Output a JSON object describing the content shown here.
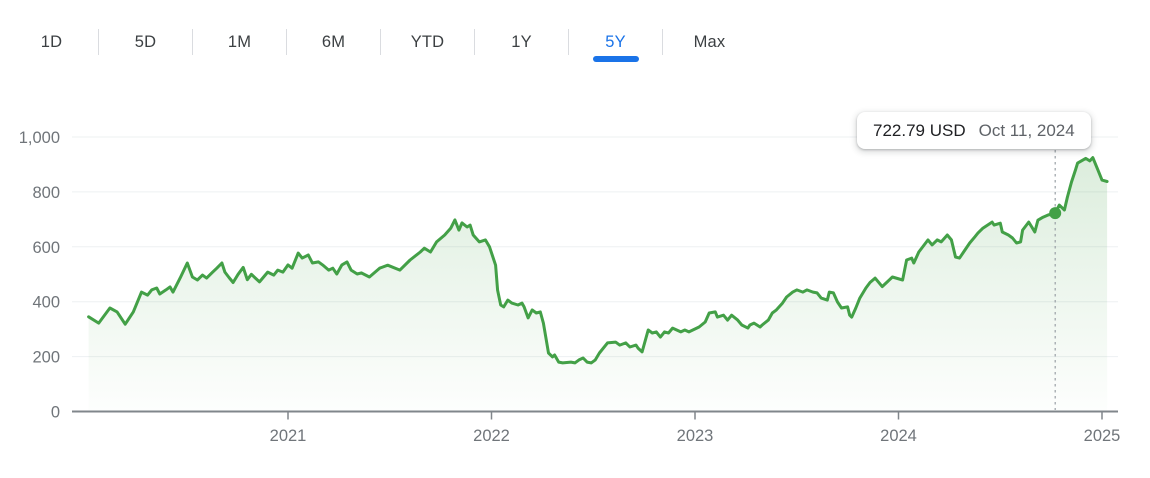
{
  "tabbar": {
    "tabs": [
      {
        "label": "1D",
        "selected": false
      },
      {
        "label": "5D",
        "selected": false
      },
      {
        "label": "1M",
        "selected": false
      },
      {
        "label": "6M",
        "selected": false
      },
      {
        "label": "YTD",
        "selected": false
      },
      {
        "label": "1Y",
        "selected": false
      },
      {
        "label": "5Y",
        "selected": true
      },
      {
        "label": "Max",
        "selected": false
      }
    ]
  },
  "tooltip": {
    "price": "722.79 USD",
    "date": "Oct 11, 2024"
  },
  "colors": {
    "accent_blue": "#1a73e8",
    "line_green": "#43a047",
    "axis_text": "#70757a",
    "tab_text": "#3c4043",
    "divider": "#dadce0",
    "gridline": "#edf0f2",
    "axis_line": "#80868b",
    "crosshair": "#9aa0a6",
    "tooltip_price_color": "#202124",
    "tooltip_date_color": "#5f6368"
  },
  "chart_data": {
    "type": "area",
    "title": "5-year stock price history (USD)",
    "xlabel": "",
    "ylabel": "",
    "ylim": [
      0,
      1000
    ],
    "xlim": [
      2020.02,
      2025.08
    ],
    "grid": true,
    "legend": false,
    "line_color": "#43a047",
    "y_ticks": [
      {
        "value": 0,
        "label": "0"
      },
      {
        "value": 200,
        "label": "200"
      },
      {
        "value": 400,
        "label": "400"
      },
      {
        "value": 600,
        "label": "600"
      },
      {
        "value": 800,
        "label": "800"
      },
      {
        "value": 1000,
        "label": "1,000"
      }
    ],
    "x_ticks": [
      {
        "value": 2021,
        "label": "2021"
      },
      {
        "value": 2022,
        "label": "2022"
      },
      {
        "value": 2023,
        "label": "2023"
      },
      {
        "value": 2024,
        "label": "2024"
      },
      {
        "value": 2025,
        "label": "2025"
      }
    ],
    "crosshair": {
      "t": 2024.77,
      "value": 722.79,
      "price": "722.79 USD",
      "date": "Oct 11, 2024"
    },
    "series": [
      {
        "name": "price",
        "points": [
          [
            2020.02,
            345
          ],
          [
            2020.07,
            322
          ],
          [
            2020.125,
            377
          ],
          [
            2020.16,
            363
          ],
          [
            2020.2,
            318
          ],
          [
            2020.24,
            363
          ],
          [
            2020.28,
            435
          ],
          [
            2020.31,
            424
          ],
          [
            2020.33,
            443
          ],
          [
            2020.355,
            450
          ],
          [
            2020.37,
            428
          ],
          [
            2020.4,
            443
          ],
          [
            2020.42,
            454
          ],
          [
            2020.435,
            435
          ],
          [
            2020.47,
            486
          ],
          [
            2020.505,
            541
          ],
          [
            2020.53,
            490
          ],
          [
            2020.555,
            479
          ],
          [
            2020.58,
            497
          ],
          [
            2020.6,
            486
          ],
          [
            2020.63,
            508
          ],
          [
            2020.65,
            522
          ],
          [
            2020.675,
            541
          ],
          [
            2020.69,
            508
          ],
          [
            2020.71,
            488
          ],
          [
            2020.73,
            470
          ],
          [
            2020.755,
            500
          ],
          [
            2020.78,
            525
          ],
          [
            2020.8,
            480
          ],
          [
            2020.82,
            500
          ],
          [
            2020.84,
            486
          ],
          [
            2020.86,
            472
          ],
          [
            2020.9,
            508
          ],
          [
            2020.93,
            497
          ],
          [
            2020.95,
            515
          ],
          [
            2020.975,
            508
          ],
          [
            2021.0,
            534
          ],
          [
            2021.02,
            522
          ],
          [
            2021.05,
            577
          ],
          [
            2021.07,
            559
          ],
          [
            2021.1,
            570
          ],
          [
            2021.12,
            541
          ],
          [
            2021.15,
            545
          ],
          [
            2021.17,
            534
          ],
          [
            2021.2,
            515
          ],
          [
            2021.22,
            522
          ],
          [
            2021.24,
            501
          ],
          [
            2021.265,
            534
          ],
          [
            2021.29,
            545
          ],
          [
            2021.31,
            515
          ],
          [
            2021.34,
            501
          ],
          [
            2021.36,
            505
          ],
          [
            2021.4,
            490
          ],
          [
            2021.45,
            522
          ],
          [
            2021.49,
            533
          ],
          [
            2021.55,
            515
          ],
          [
            2021.6,
            552
          ],
          [
            2021.65,
            581
          ],
          [
            2021.67,
            595
          ],
          [
            2021.7,
            581
          ],
          [
            2021.73,
            618
          ],
          [
            2021.77,
            643
          ],
          [
            2021.8,
            668
          ],
          [
            2021.82,
            698
          ],
          [
            2021.84,
            661
          ],
          [
            2021.855,
            687
          ],
          [
            2021.88,
            672
          ],
          [
            2021.895,
            679
          ],
          [
            2021.91,
            643
          ],
          [
            2021.94,
            618
          ],
          [
            2021.97,
            625
          ],
          [
            2021.99,
            600
          ],
          [
            2022.02,
            533
          ],
          [
            2022.03,
            442
          ],
          [
            2022.045,
            388
          ],
          [
            2022.06,
            381
          ],
          [
            2022.08,
            406
          ],
          [
            2022.1,
            395
          ],
          [
            2022.13,
            388
          ],
          [
            2022.15,
            395
          ],
          [
            2022.16,
            381
          ],
          [
            2022.18,
            341
          ],
          [
            2022.2,
            370
          ],
          [
            2022.22,
            359
          ],
          [
            2022.24,
            363
          ],
          [
            2022.255,
            322
          ],
          [
            2022.28,
            213
          ],
          [
            2022.3,
            199
          ],
          [
            2022.31,
            206
          ],
          [
            2022.33,
            180
          ],
          [
            2022.35,
            177
          ],
          [
            2022.39,
            180
          ],
          [
            2022.41,
            177
          ],
          [
            2022.43,
            188
          ],
          [
            2022.45,
            195
          ],
          [
            2022.47,
            180
          ],
          [
            2022.49,
            177
          ],
          [
            2022.51,
            188
          ],
          [
            2022.53,
            213
          ],
          [
            2022.57,
            250
          ],
          [
            2022.61,
            253
          ],
          [
            2022.63,
            242
          ],
          [
            2022.66,
            250
          ],
          [
            2022.68,
            235
          ],
          [
            2022.71,
            242
          ],
          [
            2022.72,
            231
          ],
          [
            2022.74,
            217
          ],
          [
            2022.77,
            297
          ],
          [
            2022.79,
            286
          ],
          [
            2022.81,
            290
          ],
          [
            2022.83,
            271
          ],
          [
            2022.85,
            290
          ],
          [
            2022.87,
            286
          ],
          [
            2022.89,
            304
          ],
          [
            2022.91,
            297
          ],
          [
            2022.93,
            290
          ],
          [
            2022.95,
            297
          ],
          [
            2022.97,
            290
          ],
          [
            2023.02,
            308
          ],
          [
            2023.05,
            326
          ],
          [
            2023.07,
            359
          ],
          [
            2023.1,
            363
          ],
          [
            2023.11,
            344
          ],
          [
            2023.14,
            351
          ],
          [
            2023.16,
            333
          ],
          [
            2023.18,
            351
          ],
          [
            2023.21,
            333
          ],
          [
            2023.23,
            315
          ],
          [
            2023.26,
            304
          ],
          [
            2023.27,
            315
          ],
          [
            2023.29,
            322
          ],
          [
            2023.32,
            308
          ],
          [
            2023.33,
            315
          ],
          [
            2023.36,
            333
          ],
          [
            2023.38,
            359
          ],
          [
            2023.4,
            370
          ],
          [
            2023.43,
            395
          ],
          [
            2023.45,
            417
          ],
          [
            2023.48,
            435
          ],
          [
            2023.5,
            443
          ],
          [
            2023.53,
            435
          ],
          [
            2023.55,
            443
          ],
          [
            2023.58,
            435
          ],
          [
            2023.6,
            432
          ],
          [
            2023.62,
            413
          ],
          [
            2023.65,
            406
          ],
          [
            2023.66,
            435
          ],
          [
            2023.68,
            432
          ],
          [
            2023.7,
            399
          ],
          [
            2023.72,
            377
          ],
          [
            2023.75,
            381
          ],
          [
            2023.76,
            351
          ],
          [
            2023.77,
            344
          ],
          [
            2023.79,
            377
          ],
          [
            2023.81,
            413
          ],
          [
            2023.84,
            450
          ],
          [
            2023.86,
            470
          ],
          [
            2023.885,
            486
          ],
          [
            2023.92,
            455
          ],
          [
            2023.97,
            490
          ],
          [
            2024.02,
            479
          ],
          [
            2024.04,
            552
          ],
          [
            2024.065,
            559
          ],
          [
            2024.075,
            541
          ],
          [
            2024.1,
            581
          ],
          [
            2024.145,
            625
          ],
          [
            2024.165,
            607
          ],
          [
            2024.19,
            625
          ],
          [
            2024.21,
            618
          ],
          [
            2024.24,
            643
          ],
          [
            2024.26,
            625
          ],
          [
            2024.28,
            563
          ],
          [
            2024.3,
            559
          ],
          [
            2024.32,
            581
          ],
          [
            2024.35,
            614
          ],
          [
            2024.375,
            636
          ],
          [
            2024.39,
            650
          ],
          [
            2024.415,
            668
          ],
          [
            2024.46,
            690
          ],
          [
            2024.47,
            679
          ],
          [
            2024.5,
            686
          ],
          [
            2024.51,
            654
          ],
          [
            2024.54,
            643
          ],
          [
            2024.56,
            632
          ],
          [
            2024.58,
            614
          ],
          [
            2024.6,
            618
          ],
          [
            2024.61,
            661
          ],
          [
            2024.64,
            690
          ],
          [
            2024.655,
            672
          ],
          [
            2024.67,
            654
          ],
          [
            2024.685,
            697
          ],
          [
            2024.71,
            708
          ],
          [
            2024.735,
            716
          ],
          [
            2024.77,
            722.79
          ],
          [
            2024.79,
            752
          ],
          [
            2024.815,
            734
          ],
          [
            2024.83,
            781
          ],
          [
            2024.85,
            836
          ],
          [
            2024.87,
            880
          ],
          [
            2024.88,
            905
          ],
          [
            2024.92,
            922
          ],
          [
            2024.94,
            913
          ],
          [
            2024.955,
            925
          ],
          [
            2024.98,
            880
          ],
          [
            2025.0,
            843
          ],
          [
            2025.025,
            838
          ]
        ]
      }
    ]
  }
}
